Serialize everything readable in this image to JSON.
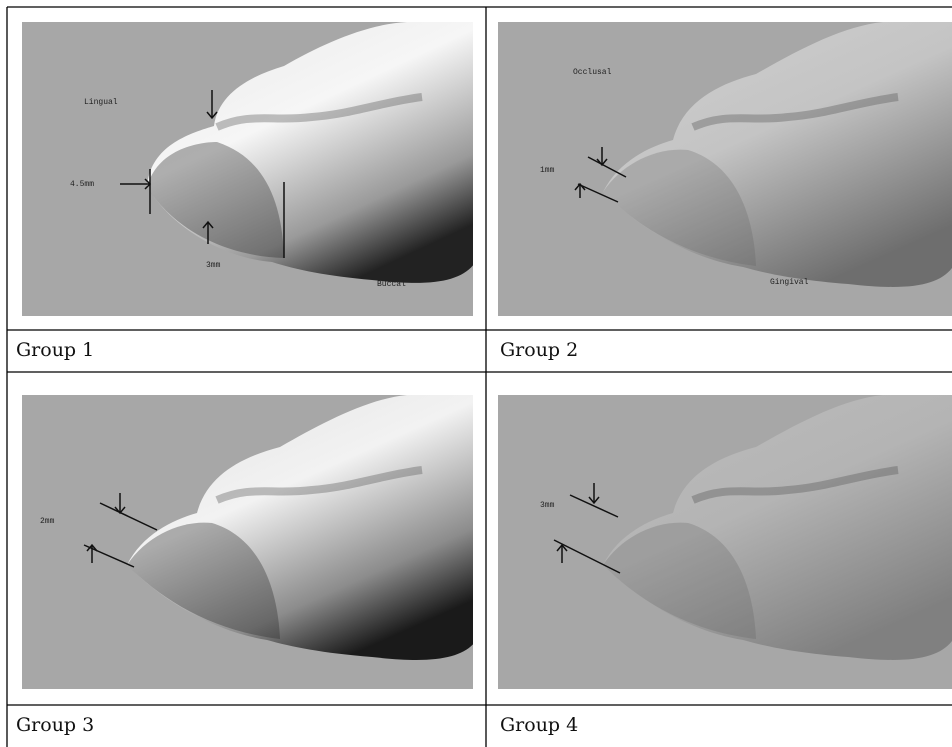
{
  "panels": [
    {
      "caption": "Group 1",
      "labels": [
        "Lingual",
        "4.5mm",
        "3mm",
        "Buccal"
      ]
    },
    {
      "caption": "Group 2",
      "labels": [
        "Occlusal",
        "1mm",
        "Gingival"
      ]
    },
    {
      "caption": "Group 3",
      "labels": [
        "2mm"
      ]
    },
    {
      "caption": "Group 4",
      "labels": [
        "3mm"
      ]
    }
  ]
}
